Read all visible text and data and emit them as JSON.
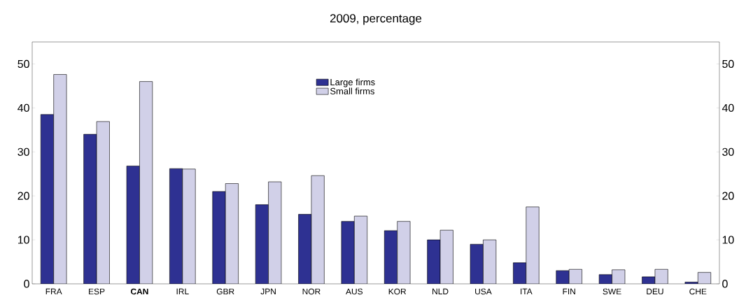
{
  "chart_data": {
    "type": "bar",
    "title": "2009, percentage",
    "categories": [
      "FRA",
      "ESP",
      "**CAN**",
      "IRL",
      "GBR",
      "JPN",
      "NOR",
      "AUS",
      "KOR",
      "NLD",
      "USA",
      "ITA",
      "FIN",
      "SWE",
      "DEU",
      "CHE"
    ],
    "series": [
      {
        "name": "Large firms",
        "color": "#2e3192",
        "values": [
          38.5,
          34,
          26.8,
          26.2,
          21,
          18,
          15.8,
          14.2,
          12.1,
          10,
          9,
          4.8,
          3,
          2.1,
          1.6,
          0.4
        ]
      },
      {
        "name": "Small firms",
        "color": "#d1d0e8",
        "values": [
          47.6,
          36.9,
          46,
          26.1,
          22.8,
          23.2,
          24.6,
          15.4,
          14.2,
          12.2,
          10,
          17.5,
          3.3,
          3.2,
          3.3,
          2.6
        ]
      }
    ],
    "ylim": [
      0,
      55
    ],
    "yticks": [
      0,
      10,
      20,
      30,
      40,
      50
    ],
    "y2lim": [
      0,
      55
    ],
    "y2ticks": [
      0,
      10,
      20,
      30,
      40,
      50
    ],
    "legend": "top",
    "grid": false
  }
}
